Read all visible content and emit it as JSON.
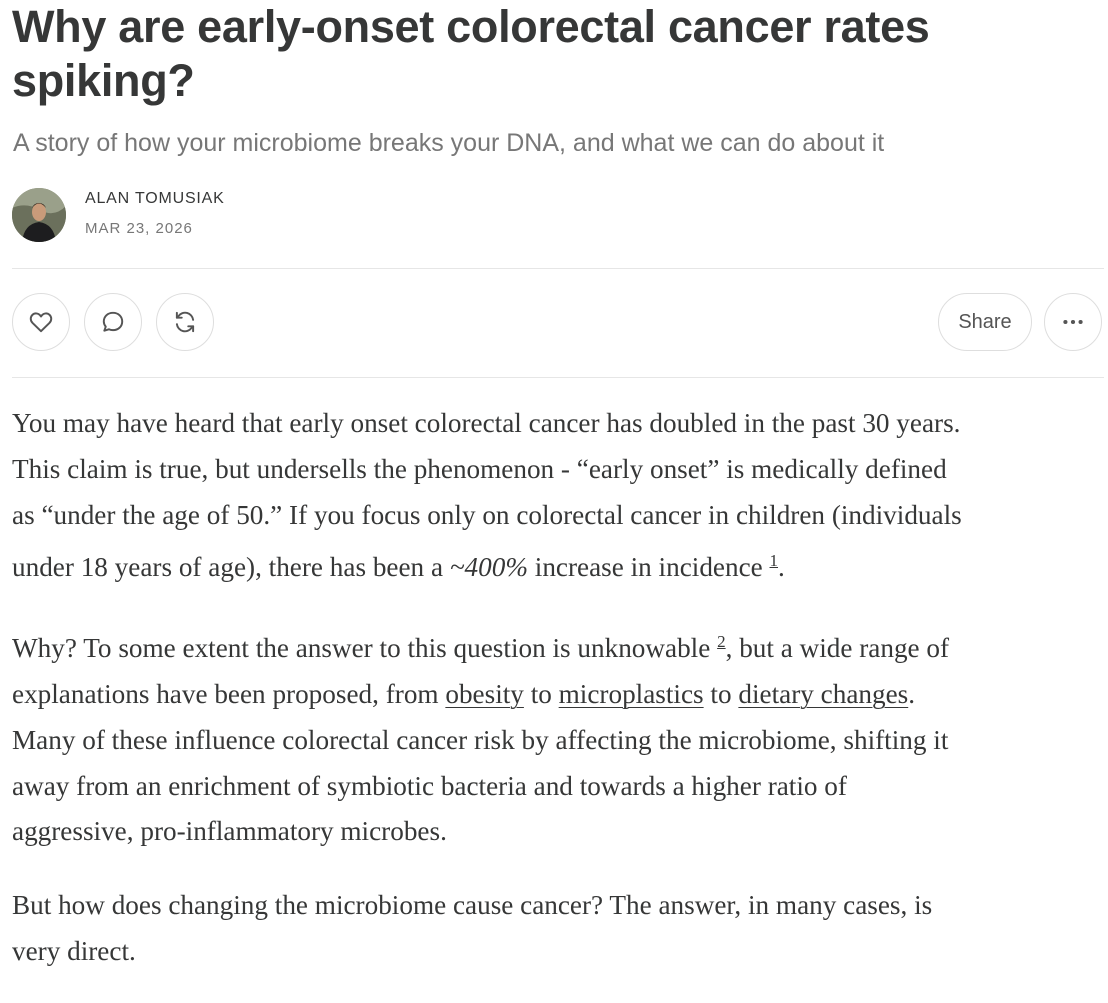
{
  "post": {
    "title": "Why are early-onset colorectal cancer rates spiking?",
    "subtitle": "A story of how your microbiome breaks your DNA, and what we can do about it",
    "author": "ALAN TOMUSIAK",
    "date": "MAR 23, 2026"
  },
  "actions": {
    "like_icon": "heart-icon",
    "comment_icon": "comment-icon",
    "restack_icon": "restack-icon",
    "share_label": "Share",
    "more_icon": "more-icon"
  },
  "body": {
    "p1": {
      "line1": "You may have heard that early onset colorectal cancer has doubled in the past 30 years.",
      "line2": "This claim is true, but undersells the phenomenon - “early onset” is medically defined",
      "line3": "as “under the age of 50.” If you focus only on colorectal cancer in children (individuals",
      "line4_a": "under 18 years of age), there has been a ",
      "line4_em": "~400%",
      "line4_b": " increase in incidence ",
      "fn": "1",
      "line4_end": "."
    },
    "p2": {
      "line1_a": "Why? To some extent the answer to this question is unknowable ",
      "fn": "2",
      "line1_b": ", but a wide range of",
      "line2_a": "explanations have been proposed, from ",
      "link1": "obesity",
      "to1": " to ",
      "link2": "microplastics",
      "to2": " to ",
      "link3": "dietary changes",
      "line2_end": ".",
      "line3": "Many of these influence colorectal cancer risk by affecting the microbiome, shifting it",
      "line4": "away from an enrichment of symbiotic bacteria and towards a higher ratio of",
      "line5": "aggressive, pro-inflammatory microbes."
    },
    "p3": {
      "line1": "But how does changing the microbiome cause cancer? The answer, in many cases, is",
      "line2": "very direct."
    }
  },
  "colors": {
    "text": "#363737",
    "muted": "#777777",
    "border": "#dedede"
  }
}
